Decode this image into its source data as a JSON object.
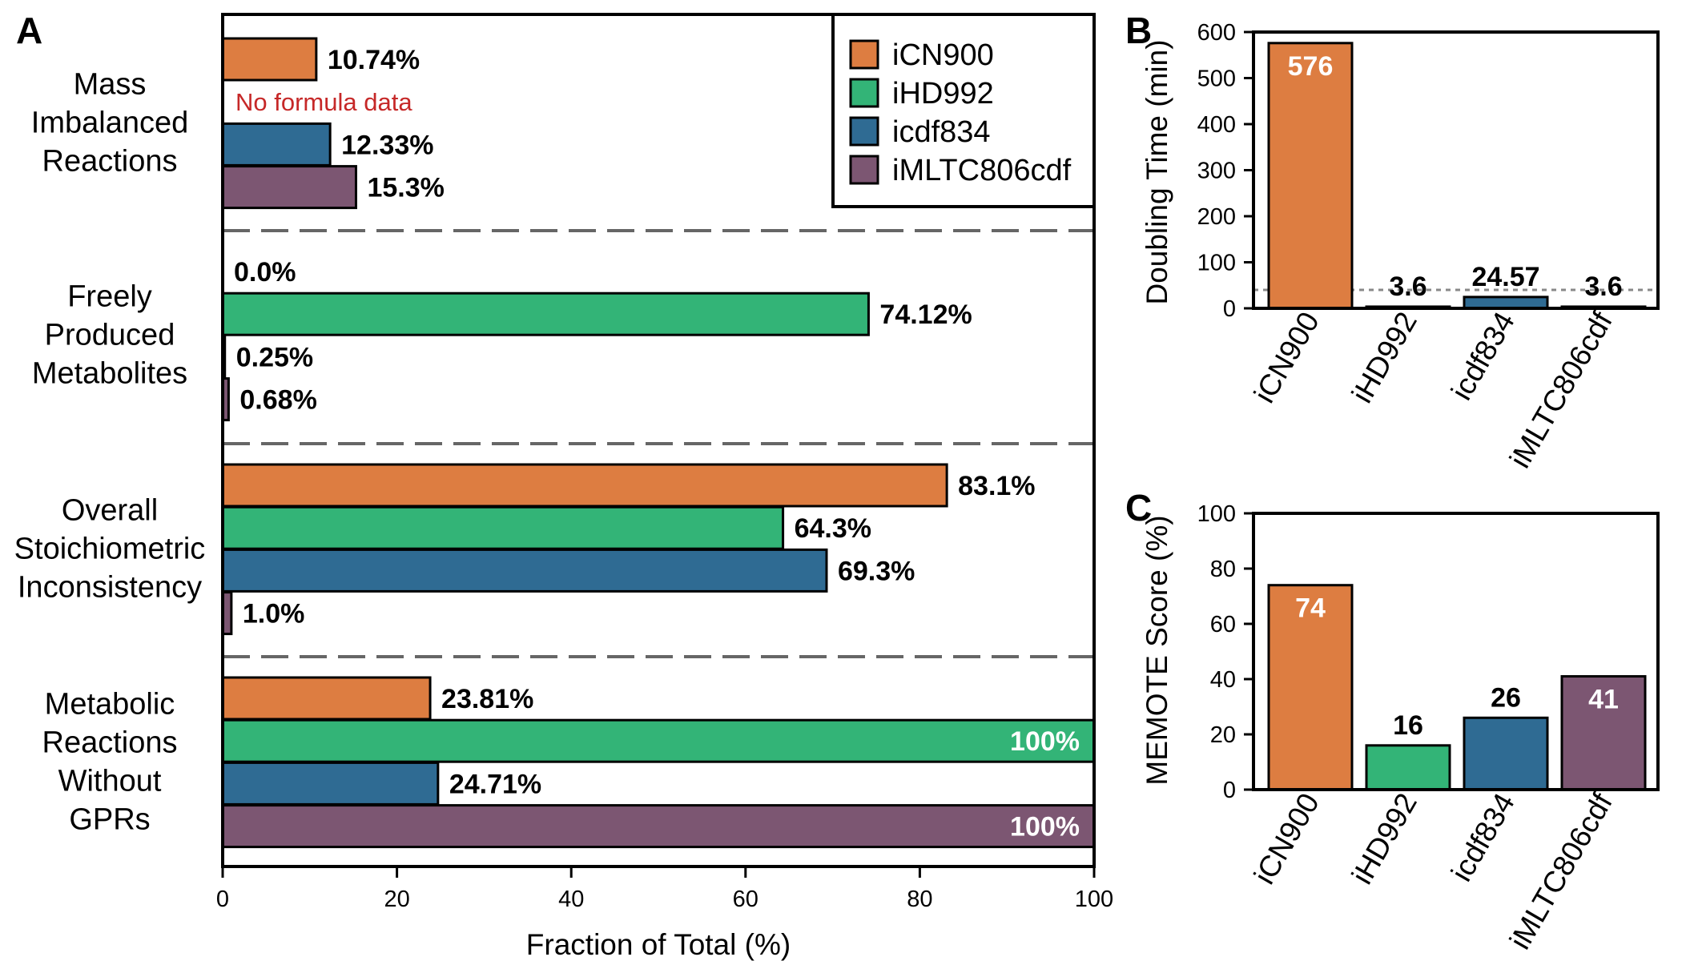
{
  "colors": {
    "iCN900": "#dd7d41",
    "iHD992": "#33b477",
    "icdf834": "#2f6b93",
    "iMLTC806cdf": "#7c5672",
    "note": "#c62828",
    "divider": "#666666"
  },
  "panel_labels": {
    "a": "A",
    "b": "B",
    "c": "C"
  },
  "chart_data": [
    {
      "panel": "A",
      "type": "bar",
      "orientation": "horizontal",
      "xlabel": "Fraction of Total (%)",
      "xlim": [
        0,
        100
      ],
      "xticks": [
        "0",
        "20",
        "40",
        "60",
        "80",
        "100"
      ],
      "legend": [
        "iCN900",
        "iHD992",
        "icdf834",
        "iMLTC806cdf"
      ],
      "legend_position": "top-right",
      "groups": [
        {
          "label_lines": [
            "Mass",
            "Imbalanced",
            "Reactions"
          ],
          "bars": [
            {
              "series": "iCN900",
              "value": 10.74,
              "label": "10.74%"
            },
            {
              "series": "iHD992",
              "value": null,
              "label": "",
              "note": "No formula data"
            },
            {
              "series": "icdf834",
              "value": 12.33,
              "label": "12.33%"
            },
            {
              "series": "iMLTC806cdf",
              "value": 15.3,
              "label": "15.3%"
            }
          ]
        },
        {
          "label_lines": [
            "Freely",
            "Produced",
            "Metabolites"
          ],
          "bars": [
            {
              "series": "iCN900",
              "value": 0.0,
              "label": "0.0%"
            },
            {
              "series": "iHD992",
              "value": 74.12,
              "label": "74.12%"
            },
            {
              "series": "icdf834",
              "value": 0.25,
              "label": "0.25%"
            },
            {
              "series": "iMLTC806cdf",
              "value": 0.68,
              "label": "0.68%"
            }
          ]
        },
        {
          "label_lines": [
            "Overall",
            "Stoichiometric",
            "Inconsistency"
          ],
          "bars": [
            {
              "series": "iCN900",
              "value": 83.1,
              "label": "83.1%"
            },
            {
              "series": "iHD992",
              "value": 64.3,
              "label": "64.3%"
            },
            {
              "series": "icdf834",
              "value": 69.3,
              "label": "69.3%"
            },
            {
              "series": "iMLTC806cdf",
              "value": 1.0,
              "label": "1.0%"
            }
          ]
        },
        {
          "label_lines": [
            "Metabolic",
            "Reactions",
            "Without",
            "GPRs"
          ],
          "bars": [
            {
              "series": "iCN900",
              "value": 23.81,
              "label": "23.81%"
            },
            {
              "series": "iHD992",
              "value": 100,
              "label": "100%"
            },
            {
              "series": "icdf834",
              "value": 24.71,
              "label": "24.71%"
            },
            {
              "series": "iMLTC806cdf",
              "value": 100,
              "label": "100%"
            }
          ]
        }
      ]
    },
    {
      "panel": "B",
      "type": "bar",
      "ylabel": "Doubling Time (min)",
      "ylim": [
        0,
        600
      ],
      "yticks": [
        "0",
        "100",
        "200",
        "300",
        "400",
        "500",
        "600"
      ],
      "reference_line": 40,
      "categories": [
        "iCN900",
        "iHD992",
        "icdf834",
        "iMLTC806cdf"
      ],
      "values": [
        576,
        3.6,
        24.57,
        3.6
      ],
      "labels": [
        "576",
        "3.6",
        "24.57",
        "3.6"
      ]
    },
    {
      "panel": "C",
      "type": "bar",
      "ylabel": "MEMOTE Score (%)",
      "ylim": [
        0,
        100
      ],
      "yticks": [
        "0",
        "20",
        "40",
        "60",
        "80",
        "100"
      ],
      "categories": [
        "iCN900",
        "iHD992",
        "icdf834",
        "iMLTC806cdf"
      ],
      "values": [
        74,
        16,
        26,
        41
      ],
      "labels": [
        "74",
        "16",
        "26",
        "41"
      ]
    }
  ]
}
